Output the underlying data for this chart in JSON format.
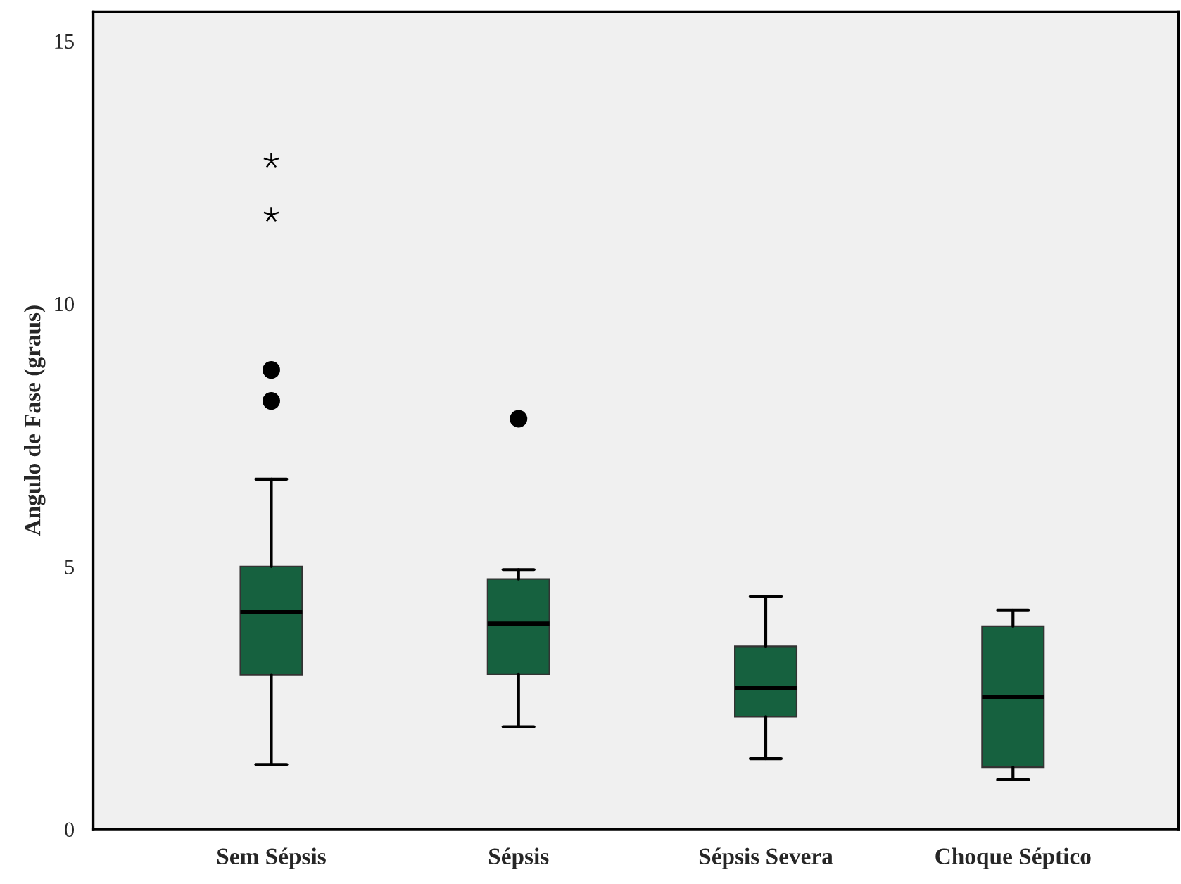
{
  "chart_data": {
    "type": "box",
    "ylabel": "Angulo de Fase (graus)",
    "categories": [
      "Sem Sépsis",
      "Sépsis",
      "Sépsis Severa",
      "Choque Séptico"
    ],
    "boxes": [
      {
        "low": 1.23,
        "q1": 2.94,
        "median": 4.13,
        "q3": 5.0,
        "high": 6.66,
        "outliers": [
          8.15,
          8.74,
          11.69,
          12.72
        ]
      },
      {
        "low": 1.95,
        "q1": 2.95,
        "median": 3.91,
        "q3": 4.76,
        "high": 4.94,
        "outliers": [
          7.81
        ]
      },
      {
        "low": 1.34,
        "q1": 2.14,
        "median": 2.69,
        "q3": 3.48,
        "high": 4.43
      },
      {
        "low": 0.94,
        "q1": 1.18,
        "median": 2.52,
        "q3": 3.86,
        "high": 4.17
      }
    ],
    "color": "#16613f",
    "ylim": [
      0,
      15.56
    ],
    "yticks": [
      0,
      5,
      10,
      15
    ],
    "grid": false
  }
}
